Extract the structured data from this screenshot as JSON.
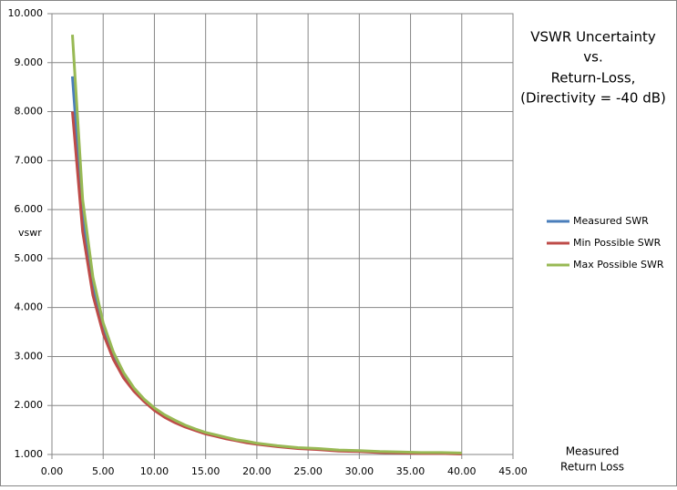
{
  "chart_data": {
    "type": "line",
    "title_lines": [
      "VSWR Uncertainty",
      "vs.",
      "Return-Loss,",
      "(Directivity = -40 dB)"
    ],
    "y_label": "vswr",
    "x_label_lines": [
      "Measured",
      "Return Loss"
    ],
    "x": [
      2,
      3,
      4,
      5,
      6,
      7,
      8,
      9,
      10,
      11,
      12,
      13,
      14,
      15,
      16,
      17,
      18,
      19,
      20,
      22,
      24,
      26,
      28,
      30,
      32,
      34,
      36,
      38,
      40
    ],
    "series": [
      {
        "name": "Measured SWR",
        "color": "#4a7ebb",
        "values": [
          8.72,
          5.85,
          4.42,
          3.57,
          3.01,
          2.61,
          2.32,
          2.1,
          1.92,
          1.78,
          1.67,
          1.58,
          1.5,
          1.43,
          1.38,
          1.33,
          1.29,
          1.25,
          1.22,
          1.17,
          1.13,
          1.11,
          1.08,
          1.07,
          1.05,
          1.04,
          1.03,
          1.03,
          1.02
        ]
      },
      {
        "name": "Min Possible  SWR",
        "color": "#be4b48",
        "values": [
          8.0,
          5.55,
          4.25,
          3.47,
          2.94,
          2.56,
          2.29,
          2.08,
          1.9,
          1.76,
          1.65,
          1.56,
          1.49,
          1.42,
          1.37,
          1.32,
          1.28,
          1.24,
          1.21,
          1.16,
          1.12,
          1.1,
          1.07,
          1.06,
          1.04,
          1.03,
          1.02,
          1.02,
          1.01
        ]
      },
      {
        "name": "Max Possible SWR",
        "color": "#98b954",
        "values": [
          9.57,
          6.2,
          4.62,
          3.69,
          3.09,
          2.67,
          2.36,
          2.13,
          1.95,
          1.81,
          1.7,
          1.6,
          1.52,
          1.45,
          1.4,
          1.35,
          1.3,
          1.27,
          1.23,
          1.18,
          1.14,
          1.12,
          1.09,
          1.08,
          1.06,
          1.05,
          1.04,
          1.04,
          1.03
        ]
      }
    ],
    "xlim": [
      0,
      45
    ],
    "ylim": [
      1,
      10
    ],
    "xticks": [
      {
        "value": 0,
        "label": "0.00"
      },
      {
        "value": 5,
        "label": "5.00"
      },
      {
        "value": 10,
        "label": "10.00"
      },
      {
        "value": 15,
        "label": "15.00"
      },
      {
        "value": 20,
        "label": "20.00"
      },
      {
        "value": 25,
        "label": "25.00"
      },
      {
        "value": 30,
        "label": "30.00"
      },
      {
        "value": 35,
        "label": "35.00"
      },
      {
        "value": 40,
        "label": "40.00"
      },
      {
        "value": 45,
        "label": "45.00"
      }
    ],
    "yticks": [
      {
        "value": 1,
        "label": "1.000"
      },
      {
        "value": 2,
        "label": "2.000"
      },
      {
        "value": 3,
        "label": "3.000"
      },
      {
        "value": 4,
        "label": "4.000"
      },
      {
        "value": 5,
        "label": "5.000"
      },
      {
        "value": 6,
        "label": "6.000"
      },
      {
        "value": 7,
        "label": "7.000"
      },
      {
        "value": 8,
        "label": "8.000"
      },
      {
        "value": 9,
        "label": "9.000"
      },
      {
        "value": 10,
        "label": "10.000"
      }
    ],
    "grid": true
  }
}
